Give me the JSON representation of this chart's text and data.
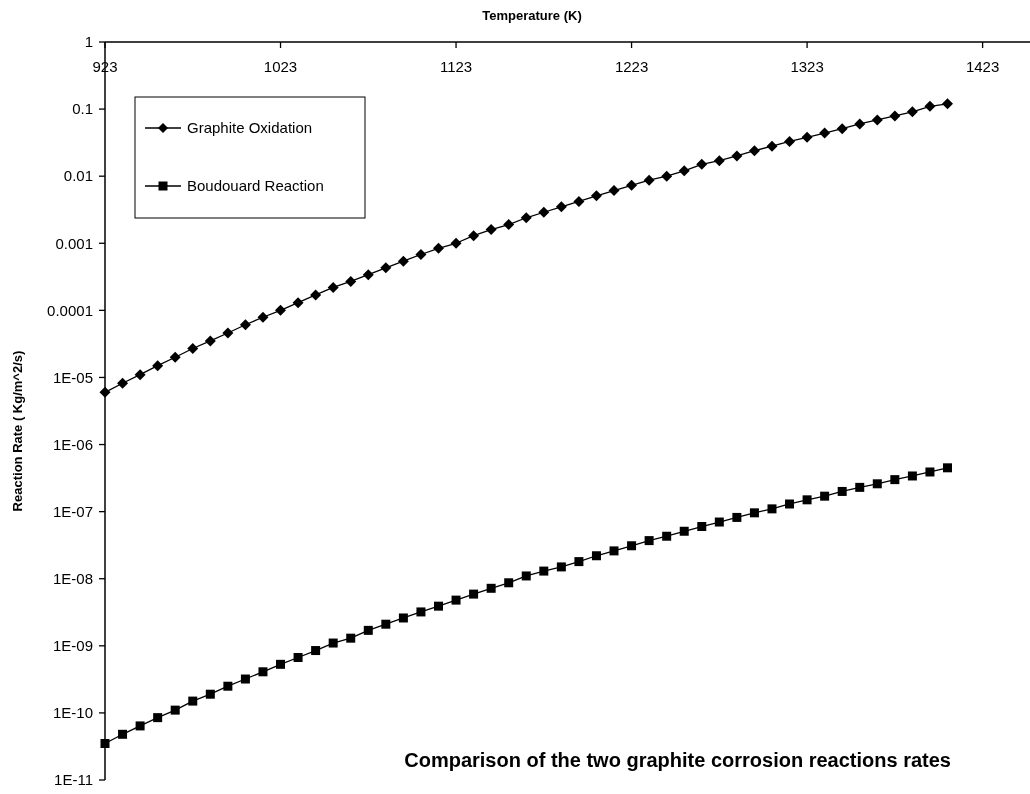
{
  "chart_data": {
    "type": "line",
    "title": "Comparison of the two graphite corrosion reactions rates",
    "xlabel": "Temperature (K)",
    "ylabel": "Reaction Rate ( Kg/m^2/s)",
    "x": [
      923,
      933,
      943,
      953,
      963,
      973,
      983,
      993,
      1003,
      1013,
      1023,
      1033,
      1043,
      1053,
      1063,
      1073,
      1083,
      1093,
      1103,
      1113,
      1123,
      1133,
      1143,
      1153,
      1163,
      1173,
      1183,
      1193,
      1203,
      1213,
      1223,
      1233,
      1243,
      1253,
      1263,
      1273,
      1283,
      1293,
      1303,
      1313,
      1323,
      1333,
      1343,
      1353,
      1363,
      1373,
      1383,
      1393,
      1403
    ],
    "series": [
      {
        "name": "Graphite Oxidation",
        "color": "#000000",
        "marker": "diamond",
        "values": [
          6e-06,
          8.2e-06,
          1.1e-05,
          1.5e-05,
          2e-05,
          2.7e-05,
          3.5e-05,
          4.6e-05,
          6.1e-05,
          7.9e-05,
          0.0001,
          0.00013,
          0.00017,
          0.00022,
          0.00027,
          0.00034,
          0.00043,
          0.00054,
          0.00068,
          0.00084,
          0.001,
          0.0013,
          0.0016,
          0.0019,
          0.0024,
          0.0029,
          0.0035,
          0.0042,
          0.0051,
          0.0061,
          0.0073,
          0.0087,
          0.01,
          0.012,
          0.015,
          0.017,
          0.02,
          0.024,
          0.028,
          0.033,
          0.038,
          0.044,
          0.051,
          0.06,
          0.069,
          0.079,
          0.091,
          0.11,
          0.12
        ]
      },
      {
        "name": "Boudouard Reaction",
        "color": "#000000",
        "marker": "square",
        "values": [
          3.5e-11,
          4.8e-11,
          6.4e-11,
          8.5e-11,
          1.1e-10,
          1.5e-10,
          1.9e-10,
          2.5e-10,
          3.2e-10,
          4.1e-10,
          5.3e-10,
          6.7e-10,
          8.5e-10,
          1.1e-09,
          1.3e-09,
          1.7e-09,
          2.1e-09,
          2.6e-09,
          3.2e-09,
          3.9e-09,
          4.8e-09,
          5.9e-09,
          7.2e-09,
          8.7e-09,
          1.1e-08,
          1.3e-08,
          1.5e-08,
          1.8e-08,
          2.2e-08,
          2.6e-08,
          3.1e-08,
          3.7e-08,
          4.3e-08,
          5.1e-08,
          6e-08,
          7e-08,
          8.2e-08,
          9.6e-08,
          1.1e-07,
          1.3e-07,
          1.5e-07,
          1.7e-07,
          2e-07,
          2.3e-07,
          2.6e-07,
          3e-07,
          3.4e-07,
          3.9e-07,
          4.5e-07
        ]
      }
    ],
    "log": "y",
    "xlim": [
      923,
      1450
    ],
    "xticks": [
      923,
      1023,
      1123,
      1223,
      1323,
      1423
    ],
    "ylim": [
      1e-11,
      1
    ],
    "yticks": [
      1,
      0.1,
      0.01,
      0.001,
      0.0001,
      {
        "value": 1e-05,
        "label": "1E-05"
      },
      {
        "value": 1e-06,
        "label": "1E-06"
      },
      {
        "value": 1e-07,
        "label": "1E-07"
      },
      {
        "value": 1e-08,
        "label": "1E-08"
      },
      {
        "value": 1e-09,
        "label": "1E-09"
      },
      {
        "value": 1e-10,
        "label": "1E-10"
      },
      {
        "value": 1e-11,
        "label": "1E-11"
      }
    ],
    "legend": "top left",
    "grid": false,
    "line_style": "solid"
  }
}
